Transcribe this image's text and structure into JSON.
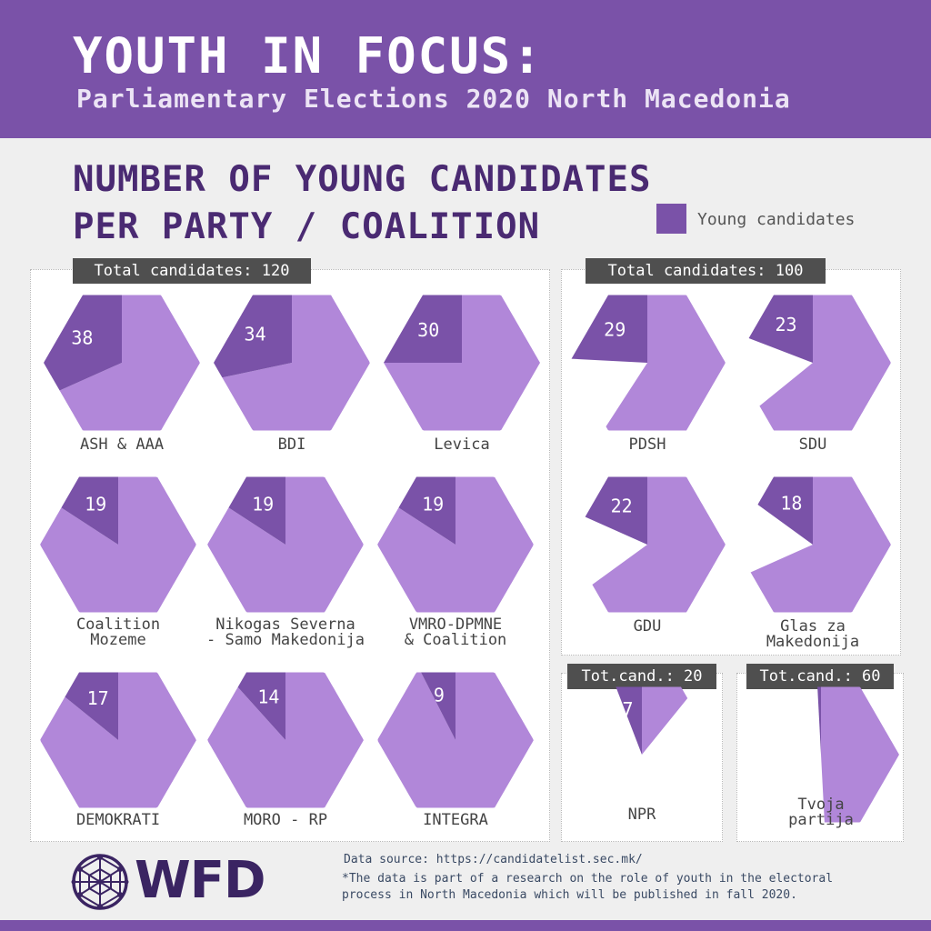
{
  "header": {
    "title": "YOUTH IN FOCUS:",
    "subtitle": "Parliamentary Elections 2020 North Macedonia"
  },
  "section": {
    "title_line1": "NUMBER OF YOUNG CANDIDATES",
    "title_line2": "PER PARTY / COALITION"
  },
  "legend": {
    "label": "Young candidates",
    "color": "#7a52a8"
  },
  "colors": {
    "young": "#7a52a8",
    "total": "#b187d9",
    "tag_bg": "#4f4f4f"
  },
  "tags": {
    "group_120": "Total candidates: 120",
    "group_100": "Total candidates: 100",
    "group_20": "Tot.cand.: 20",
    "group_60": "Tot.cand.: 60"
  },
  "chart_data": {
    "type": "pie",
    "series": [
      {
        "name": "Young candidates"
      }
    ],
    "categories": [
      "ASH & AAA",
      "BDI",
      "Levica",
      "Coalition Mozeme",
      "Nikogas Severna - Samo Makedonija",
      "VMRO-DPMNE & Coalition",
      "DEMOKRATI",
      "MORO - RP",
      "INTEGRA",
      "PDSH",
      "SDU",
      "GDU",
      "Glas za Makedonija",
      "NPR",
      "Tvoja partija"
    ],
    "parties": [
      {
        "label": [
          "ASH & AAA"
        ],
        "young": 38,
        "total": 120,
        "shape": "hexagon"
      },
      {
        "label": [
          "BDI"
        ],
        "young": 34,
        "total": 120,
        "shape": "hexagon"
      },
      {
        "label": [
          "Levica"
        ],
        "young": 30,
        "total": 120,
        "shape": "hexagon"
      },
      {
        "label": [
          "Coalition",
          "Mozeme"
        ],
        "young": 19,
        "total": 120,
        "shape": "hexagon"
      },
      {
        "label": [
          "Nikogas Severna",
          "- Samo Makedonija"
        ],
        "young": 19,
        "total": 120,
        "shape": "hexagon"
      },
      {
        "label": [
          "VMRO-DPMNE",
          "& Coalition"
        ],
        "young": 19,
        "total": 120,
        "shape": "hexagon"
      },
      {
        "label": [
          "DEMOKRATI"
        ],
        "young": 17,
        "total": 120,
        "shape": "hexagon"
      },
      {
        "label": [
          "MORO - RP"
        ],
        "young": 14,
        "total": 120,
        "shape": "hexagon"
      },
      {
        "label": [
          "INTEGRA"
        ],
        "young": 9,
        "total": 120,
        "shape": "hexagon"
      },
      {
        "label": [
          "PDSH"
        ],
        "young": 29,
        "total": 100,
        "shape": "partial-hexagon"
      },
      {
        "label": [
          "SDU"
        ],
        "young": 23,
        "total": 100,
        "shape": "partial-hexagon"
      },
      {
        "label": [
          "GDU"
        ],
        "young": 22,
        "total": 100,
        "shape": "partial-hexagon"
      },
      {
        "label": [
          "Glas za",
          "Makedonija"
        ],
        "young": 18,
        "total": 100,
        "shape": "partial-hexagon"
      },
      {
        "label": [
          "NPR"
        ],
        "young": 7,
        "total": 20,
        "shape": "triangle"
      },
      {
        "label": [
          "Tvoja",
          "partija"
        ],
        "young": 1,
        "total": 60,
        "shape": "trapezoid"
      }
    ]
  },
  "logo": {
    "text": "WFD",
    "icon": "globe-icon"
  },
  "footer": {
    "source": "Data source: https://candidatelist.sec.mk/",
    "note_line1": "*The data is part of a research on the role of youth in the electoral",
    "note_line2": "process in North Macedonia which will be published in fall 2020."
  }
}
